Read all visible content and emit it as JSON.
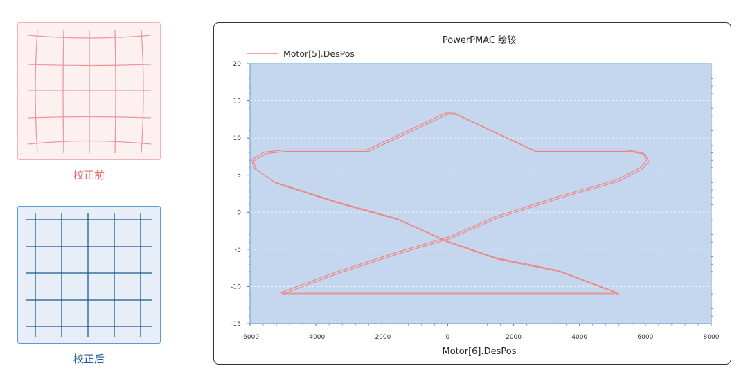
{
  "left_panels": {
    "before_caption": "校正前",
    "after_caption": "校正后",
    "before_grid_color": "#e89aa0",
    "after_grid_color": "#1a5a8a"
  },
  "chart_data": {
    "type": "line",
    "title": "PowerPMAC 绘较",
    "xlabel": "Motor[6].DesPos",
    "ylabel": "",
    "xlim": [
      -6000,
      8000
    ],
    "ylim": [
      -15,
      20
    ],
    "xticks": [
      -6000,
      -4000,
      -2000,
      0,
      2000,
      4000,
      6000,
      8000
    ],
    "yticks": [
      -15,
      -10,
      -5,
      0,
      5,
      10,
      15,
      20
    ],
    "xtick_labels": [
      "-6000",
      "-4000",
      "-2000",
      "0",
      "2000",
      "4000",
      "6000",
      "8000"
    ],
    "ytick_labels": [
      "-15",
      "-10",
      "-5",
      "0",
      "5",
      "10",
      "15",
      "20"
    ],
    "grid": "horizontal dashed",
    "legend_position": "top-left",
    "plot_background": "#c5d7ee",
    "line_color": "#f08080",
    "series": [
      {
        "name": "Motor[5].DesPos",
        "x": [
          -2500,
          -2400,
          0,
          250,
          2650,
          2750,
          5500,
          6000,
          6100,
          5900,
          5200,
          3400,
          1500,
          100,
          -1500,
          -3300,
          -5000,
          -4950,
          5100,
          5200,
          3400,
          1500,
          0,
          -1500,
          -3300,
          -5200,
          -5800,
          -5900,
          -5500,
          -4900,
          -2500
        ],
        "y": [
          8.2,
          8.2,
          13.2,
          13.2,
          8.2,
          8.2,
          8.2,
          7.8,
          6.8,
          5.8,
          4.2,
          1.9,
          -0.8,
          -3.5,
          -5.6,
          -8.2,
          -11.0,
          -11.1,
          -11.1,
          -11.0,
          -8.0,
          -6.3,
          -4.0,
          -1.0,
          1.2,
          3.9,
          5.7,
          6.9,
          7.9,
          8.2,
          8.2
        ]
      }
    ]
  }
}
